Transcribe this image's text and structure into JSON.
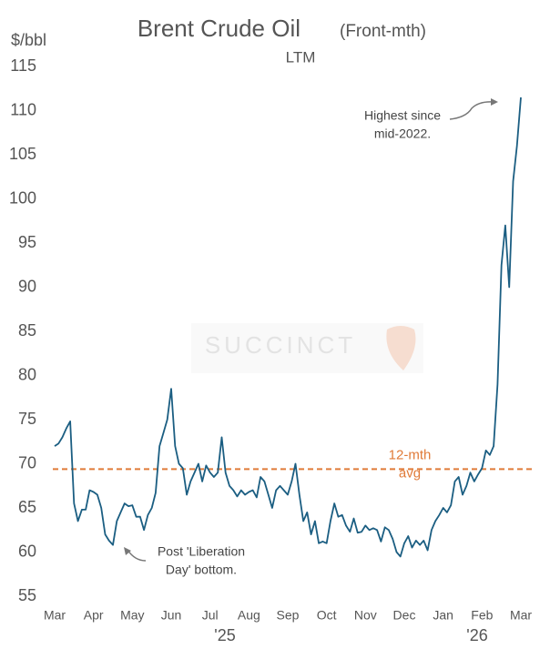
{
  "chart_data": {
    "type": "line",
    "title": "Brent Crude Oil",
    "title_suffix": "(Front-mth)",
    "subtitle": "LTM",
    "y_axis_label": "$/bbl",
    "watermark": "SUCCINCT",
    "categories": [
      "Mar",
      null,
      null,
      null,
      null,
      null,
      null,
      null,
      null,
      null,
      "Apr",
      null,
      null,
      null,
      null,
      null,
      null,
      null,
      null,
      null,
      "May",
      null,
      null,
      null,
      null,
      null,
      null,
      null,
      null,
      null,
      "Jun",
      null,
      null,
      null,
      null,
      null,
      null,
      null,
      null,
      null,
      "Jul",
      null,
      null,
      null,
      null,
      null,
      null,
      null,
      null,
      null,
      "Aug",
      null,
      null,
      null,
      null,
      null,
      null,
      null,
      null,
      null,
      "Sep",
      null,
      null,
      null,
      null,
      null,
      null,
      null,
      null,
      null,
      "Oct",
      null,
      null,
      null,
      null,
      null,
      null,
      null,
      null,
      null,
      "Nov",
      null,
      null,
      null,
      null,
      null,
      null,
      null,
      null,
      null,
      "Dec",
      null,
      null,
      null,
      null,
      null,
      null,
      null,
      null,
      null,
      "Jan",
      null,
      null,
      null,
      null,
      null,
      null,
      null,
      null,
      null,
      "Feb",
      null,
      null,
      null,
      null,
      null,
      null,
      null,
      null,
      null,
      "Mar"
    ],
    "year_labels": [
      "'25",
      "'26"
    ],
    "series": [
      {
        "name": "Brent Crude Oil",
        "color": "#1b5e82",
        "values": [
          72,
          72.3,
          73,
          74,
          74.8,
          65.5,
          63.5,
          64.8,
          64.8,
          67,
          66.8,
          66.5,
          65,
          62,
          61.3,
          60.8,
          63.5,
          64.5,
          65.5,
          65.2,
          65.3,
          64,
          64,
          62.5,
          64.2,
          65,
          66.7,
          72,
          73.5,
          75,
          78.5,
          72,
          70,
          69.5,
          66.5,
          68,
          69,
          70,
          68,
          69.8,
          69,
          68.5,
          69,
          73,
          69,
          67.5,
          67,
          66.3,
          67,
          66.5,
          66.8,
          67,
          66.2,
          68.5,
          68,
          66.5,
          65,
          67,
          67.5,
          67,
          66.5,
          68,
          70,
          66.5,
          63.5,
          64.5,
          62,
          63.5,
          61,
          61.2,
          61,
          63.5,
          65.5,
          64,
          64.2,
          63,
          62.3,
          63.8,
          62.2,
          62.3,
          63,
          62.5,
          62.7,
          62.5,
          61.2,
          62.8,
          62.5,
          61.5,
          60,
          59.5,
          61,
          61.8,
          60.5,
          61.3,
          60.8,
          61.3,
          60.2,
          62.5,
          63.5,
          64.2,
          65,
          64.5,
          65.3,
          68,
          68.5,
          66.5,
          67.5,
          69,
          68,
          68.8,
          69.5,
          71.5,
          71,
          72,
          79,
          92.5,
          97,
          90,
          102,
          106,
          111.5
        ]
      }
    ],
    "average": {
      "value": 69.4,
      "color": "#e07b39",
      "label": [
        "12-mth",
        "avg"
      ]
    },
    "annotations": [
      {
        "lines": [
          "Highest since",
          "mid-2022."
        ]
      },
      {
        "lines": [
          "Post 'Liberation",
          "Day' bottom."
        ]
      }
    ],
    "ylim": [
      55,
      115
    ],
    "yticks": [
      55,
      60,
      65,
      70,
      75,
      80,
      85,
      90,
      95,
      100,
      105,
      110,
      115
    ],
    "grid": false
  }
}
